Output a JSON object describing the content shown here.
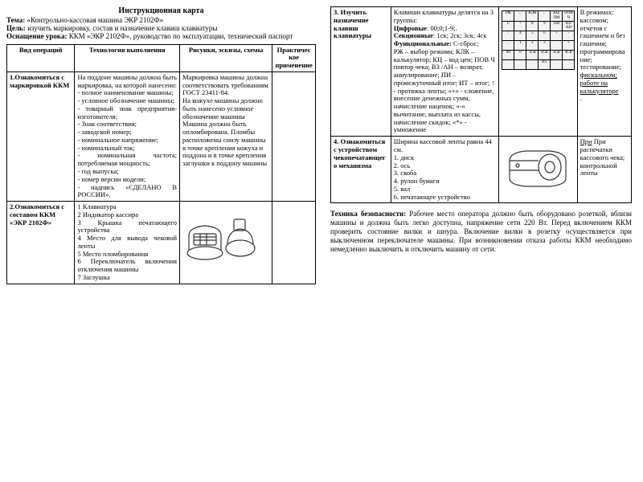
{
  "left": {
    "title": "Инструкционная карта",
    "topic_label": "Тема:",
    "topic": "«Контрольно-кассовая машина ЭКР 2102Ф»",
    "goal_label": "Цель:",
    "goal": "изучить маркировку, состав и назначение клавиш клавиатуры",
    "equip_label": "Оснащение урока:",
    "equip": "ККМ «ЭКР 2102Ф», руководство по эксплуатации, технический паспорт",
    "headers": [
      "Вид операций",
      "Технология выполнения",
      "Рисунки, эскизы, схемы",
      "Практическое применение"
    ],
    "r1c1_title": "1.Ознакомиться с маркировкой ККМ",
    "r1c2": "На поддоне машины должна быть маркировка, на которой нанесено:\n- полное наименование машины;\n- условное обозначение машины;\n- товарный знак предприятия-изготовителя;\n- Знак соответствия;\n- заводской номер;\n- номинальное напряжение;\n- номинальный ток;\n- номинальная частота; потребляемая мощность;\n- год выпуска;\n- номер версии модели;\n- надпись «СДЕЛАНО В РОССИИ».",
    "r1c3": "Маркировка машины должна соответствовать требованиям ГОСТ 23411-84.\nНа кожухе машины должно быть нанесено условное обозначение машины\nМашина должна быть опломбирована. Пломбы расположены снизу машины в точке крепления кожуха и поддона и в точке крепления заглушки к поддону машины",
    "r2c1_title": "2.Ознакомиться с составом ККМ «ЭКР 2102Ф»",
    "r2c2": "1 Клавиатура\n2 Индикатор кассира\n3 Крышка печатающего устройства\n4 Место для вывода чековой ленты\n5 Место пломбирования\n6 Переключатель включения отключения машины\n7 Заглушка"
  },
  "right": {
    "r3c1_title": "3. Изучить назначение клавиш клавиатуры",
    "r3c2a": "Клавиши клавиатуры делятся на 3 группы:",
    "r3c2b": "Цифровые",
    "r3c2b_txt": ": 00;0;1-9;.",
    "r3c2c": "Секционные",
    "r3c2c_txt": ": 1ск; 2ск; 3ск; 4ск",
    "r3c2d": "Функциональные:",
    "r3c2d_txt": " С-сброс;\nРЖ – выбор режима; КЛК – калькулятор; КЦ – код цен; ПОВ Ч повтор чека; ВЗ /АН – возврат, аннулирование; ПИ – промежуточный итог; ИТ – итог; ↑ - протяжка ленты; «+» - сложение, внесение денежных сумм, начисление наценок; «-« вычитание, выплата из кассы, начисление скидок; «*» - умножение",
    "r3c4": "В режимах: кассовом; отчетов с гашением и без гашения; программирование; тестирование;",
    "r3c4_ul1": "фискальном;",
    "r3c4_ul2": "работе на",
    "r3c4_ul3": "калькуляторе",
    "r4c1_title": "4. Ознакомиться с устройством чекопечатающего механизма",
    "r4c2": "Ширина кассовой ленты равна 44 см.\n1. диск\n2. ось\n3. скоба\n4. рулон бумаги\n5. вал\n6. печатающее устройство",
    "r4c4": "При распечатки кассового чека; контрольной ленты",
    "safety_label": "Техника безопасности:",
    "safety": "Рабочее место оператора должно быть оборудовано розеткой, вблизи машины и должна быть легко доступна, напряжение сети 220 Вт. Перед включением ККМ проверить состояние вилки и шнура. Включение вилки в розетку осуществляется при выключенном переключателе машины. При возникновении отказа работы ККМ необходимо немедленно выключить и отключить машину от сети.",
    "keyboard_rows": [
      [
        "РЖ",
        "←",
        "КЛК",
        "←",
        "КЦ/ПМ",
        "ПОВ Ч"
      ],
      [
        "С",
        "7",
        "8",
        "9",
        "ПИ",
        "ВЗ/АН"
      ],
      [
        "↑",
        "4",
        "5",
        "6",
        "×",
        "-"
      ],
      [
        ".",
        "1",
        "2",
        "3",
        "",
        "+"
      ],
      [
        "00",
        "0",
        "1СК",
        "2СК",
        "3СК",
        "4СК"
      ],
      [
        "",
        "",
        "",
        "ИТ",
        "",
        ""
      ]
    ]
  },
  "style": {
    "col_widths_left": [
      "22%",
      "34%",
      "30%",
      "14%"
    ],
    "col_widths_right": [
      "20%",
      "36%",
      "26%",
      "18%"
    ],
    "text_color": "#000000",
    "bg_color": "#ffffff"
  }
}
